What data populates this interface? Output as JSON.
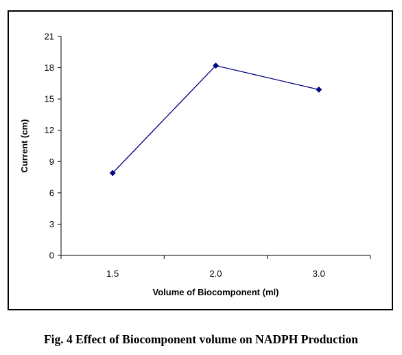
{
  "chart_data": {
    "type": "line",
    "title": "",
    "xlabel": "Volume of Biocomponent (ml)",
    "ylabel": "Current (cm)",
    "categories": [
      "1.5",
      "2.0",
      "3.0"
    ],
    "series": [
      {
        "values": [
          7.9,
          18.2,
          15.9
        ]
      }
    ],
    "ylim": [
      0,
      21
    ],
    "yticks": [
      0,
      3,
      6,
      9,
      12,
      15,
      18,
      21
    ],
    "ytick_labels": [
      "0",
      "3",
      "6",
      "9",
      "12",
      "15",
      "18",
      "21"
    ],
    "grid": false,
    "legend": "none",
    "marker": "diamond",
    "colors": {
      "series_line": "#000080",
      "axis": "#000000"
    }
  },
  "caption": "Fig. 4 Effect of Biocomponent volume on NADPH Production"
}
